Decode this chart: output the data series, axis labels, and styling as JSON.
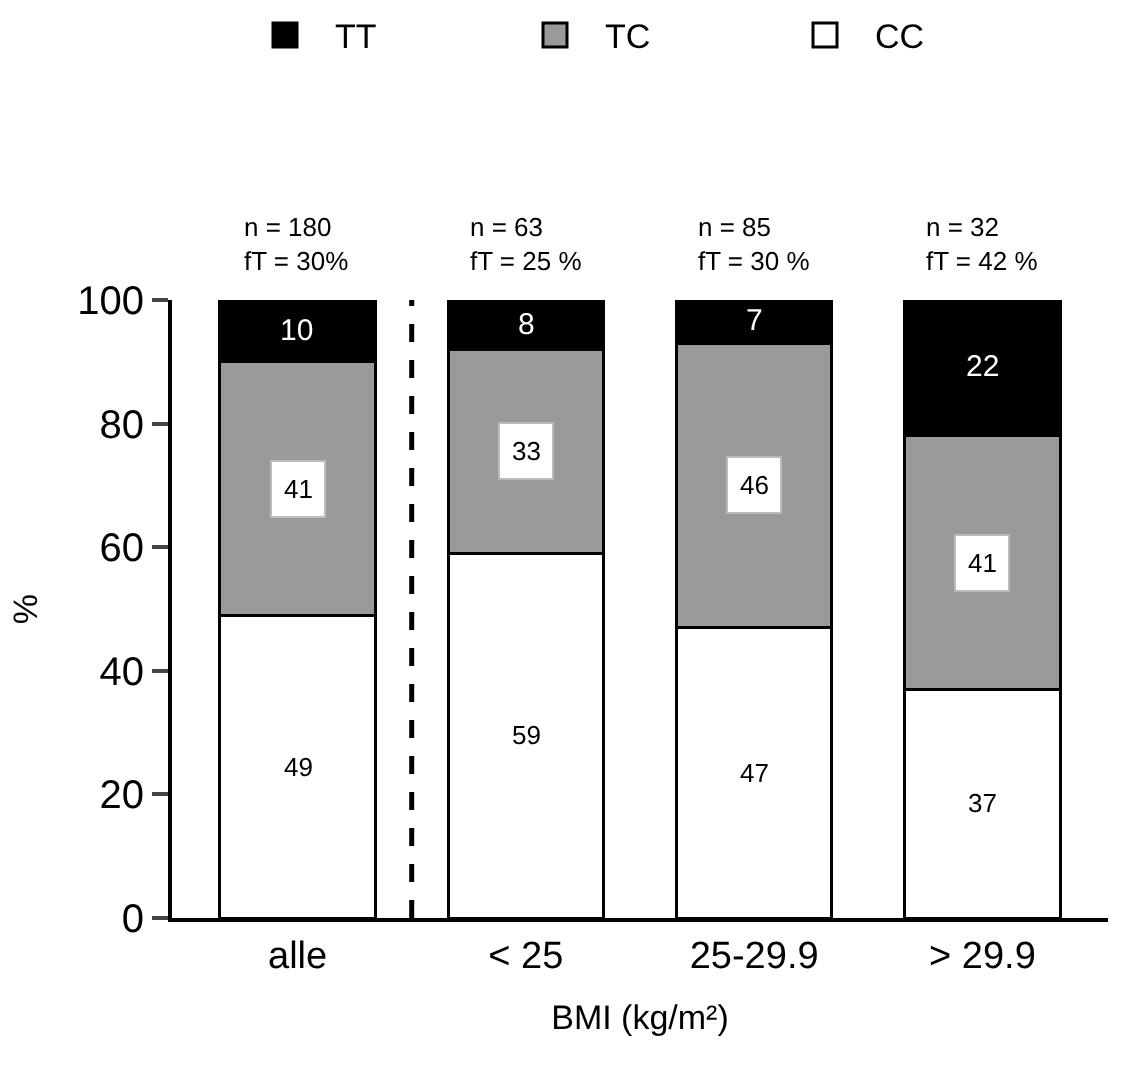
{
  "chart_data": {
    "type": "bar",
    "stacked": true,
    "xlabel": "BMI (kg/m²)",
    "ylabel": "%",
    "categories": [
      "alle",
      "< 25",
      "25-29.9",
      "> 29.9"
    ],
    "series": [
      {
        "name": "CC",
        "color": "#ffffff",
        "values": [
          49,
          59,
          47,
          37
        ]
      },
      {
        "name": "TC",
        "color": "#9a9a9a",
        "values": [
          41,
          33,
          46,
          41
        ]
      },
      {
        "name": "TT",
        "color": "#000000",
        "values": [
          10,
          8,
          7,
          22
        ]
      }
    ],
    "data_labels": true,
    "annotations": [
      "n = 180\nfT = 30%",
      "n = 63\nfT = 25 %",
      "n = 85\nfT = 30 %",
      "n = 32\nfT = 42 %"
    ],
    "ylim": [
      0,
      100
    ],
    "yticks": [
      0,
      20,
      40,
      60,
      80,
      100
    ],
    "legend": "top"
  }
}
